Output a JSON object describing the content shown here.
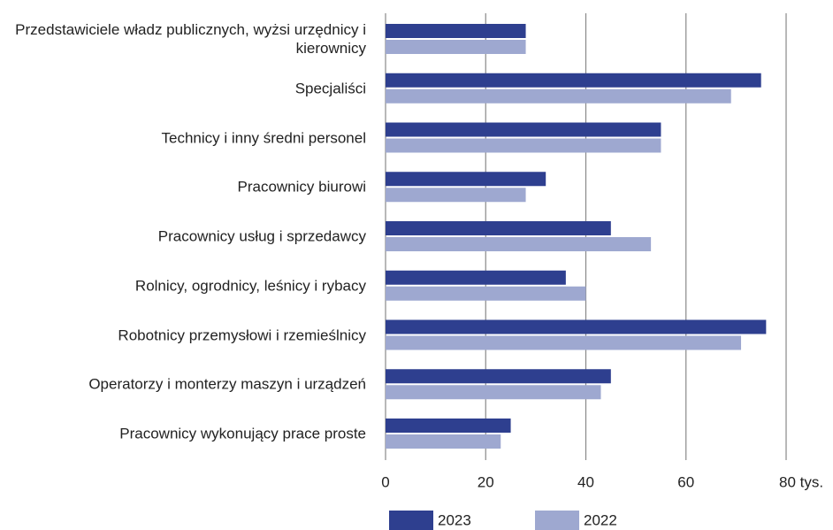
{
  "chart_data": {
    "type": "barh",
    "categories": [
      "Przedstawiciele władz publicznych, wyżsi urzędnicy i kierownicy",
      "Specjaliści",
      "Technicy i inny średni personel",
      "Pracownicy biurowi",
      "Pracownicy usług  i sprzedawcy",
      "Rolnicy, ogrodnicy, leśnicy i rybacy",
      "Robotnicy  przemysłowi i rzemieślnicy",
      "Operatorzy i monterzy maszyn i urządzeń",
      "Pracownicy wykonujący prace proste"
    ],
    "series": [
      {
        "name": "2023",
        "color": "#2e3f8f",
        "values": [
          28,
          75,
          55,
          32,
          45,
          36,
          76,
          45,
          25
        ]
      },
      {
        "name": "2022",
        "color": "#9ea8d0",
        "values": [
          28,
          69,
          55,
          28,
          53,
          40,
          71,
          43,
          23
        ]
      }
    ],
    "xlim": [
      0,
      80
    ],
    "xticks": [
      0,
      20,
      40,
      60,
      {
        "value": 80,
        "label": "80 tys."
      }
    ],
    "grid": true
  }
}
